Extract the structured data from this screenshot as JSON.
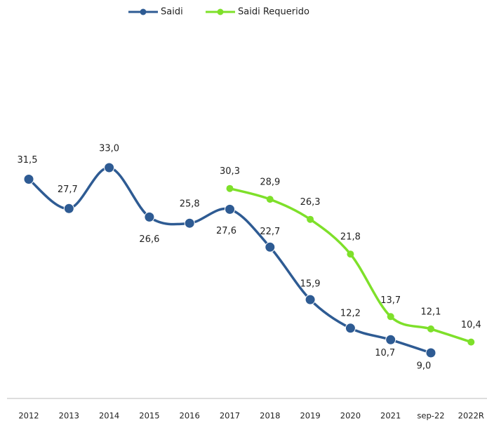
{
  "chart_data": {
    "type": "line",
    "categories": [
      "2012",
      "2013",
      "2014",
      "2015",
      "2016",
      "2017",
      "2018",
      "2019",
      "2020",
      "2021",
      "sep-22",
      "2022R"
    ],
    "series": [
      {
        "name": "Saidi",
        "color": "#2e5b93",
        "values": [
          31.5,
          27.7,
          33.0,
          26.6,
          25.8,
          27.6,
          22.7,
          15.9,
          12.2,
          10.7,
          9.0,
          null
        ],
        "value_labels": [
          "31,5",
          "27,7",
          "33,0",
          "26,6",
          "25,8",
          "27,6",
          "22,7",
          "15,9",
          "12,2",
          "10,7",
          "9,0",
          null
        ]
      },
      {
        "name": "Saidi Requerido",
        "color": "#7ee02a",
        "values": [
          null,
          null,
          null,
          null,
          null,
          30.3,
          28.9,
          26.3,
          21.8,
          13.7,
          12.1,
          10.4
        ],
        "value_labels": [
          null,
          null,
          null,
          null,
          null,
          "30,3",
          "28,9",
          "26,3",
          "21,8",
          "13,7",
          "12,1",
          "10,4"
        ]
      }
    ]
  }
}
